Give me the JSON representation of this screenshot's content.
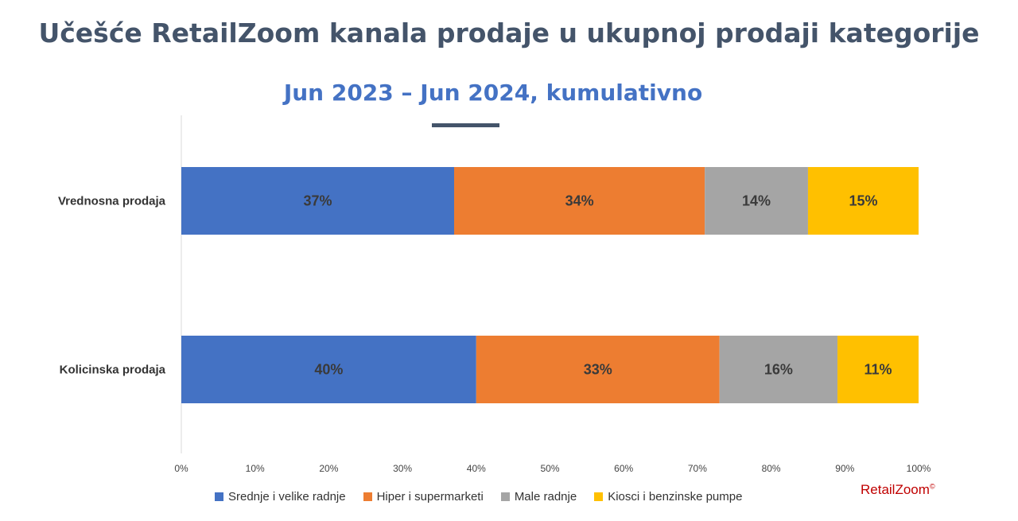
{
  "chart_data": {
    "type": "bar",
    "orientation": "horizontal",
    "stacked": true,
    "title": "Učešće RetailZoom kanala prodaje u ukupnoj prodaji kategorije",
    "subtitle": "Jun 2023 – Jun 2024, kumulativno",
    "categories": [
      "Vrednosna prodaja",
      "Kolicinska prodaja"
    ],
    "series": [
      {
        "name": "Srednje i velike radnje",
        "color": "#4472c4",
        "values": [
          37,
          40
        ],
        "labels": [
          "37%",
          "40%"
        ]
      },
      {
        "name": "Hiper i supermarketi",
        "color": "#ed7d31",
        "values": [
          34,
          33
        ],
        "labels": [
          "34%",
          "33%"
        ]
      },
      {
        "name": "Male radnje",
        "color": "#a5a5a5",
        "values": [
          14,
          16
        ],
        "labels": [
          "14%",
          "16%"
        ]
      },
      {
        "name": "Kiosci i benzinske pumpe",
        "color": "#ffc000",
        "values": [
          15,
          11
        ],
        "labels": [
          "15%",
          "11%"
        ]
      }
    ],
    "xlim": [
      0,
      100
    ],
    "x_ticks": [
      "0%",
      "10%",
      "20%",
      "30%",
      "40%",
      "50%",
      "60%",
      "70%",
      "80%",
      "90%",
      "100%"
    ],
    "legend_position": "bottom",
    "grid": false
  },
  "brand": {
    "part1": "Retail",
    "part2": "Zoom",
    "symbol": "©"
  }
}
